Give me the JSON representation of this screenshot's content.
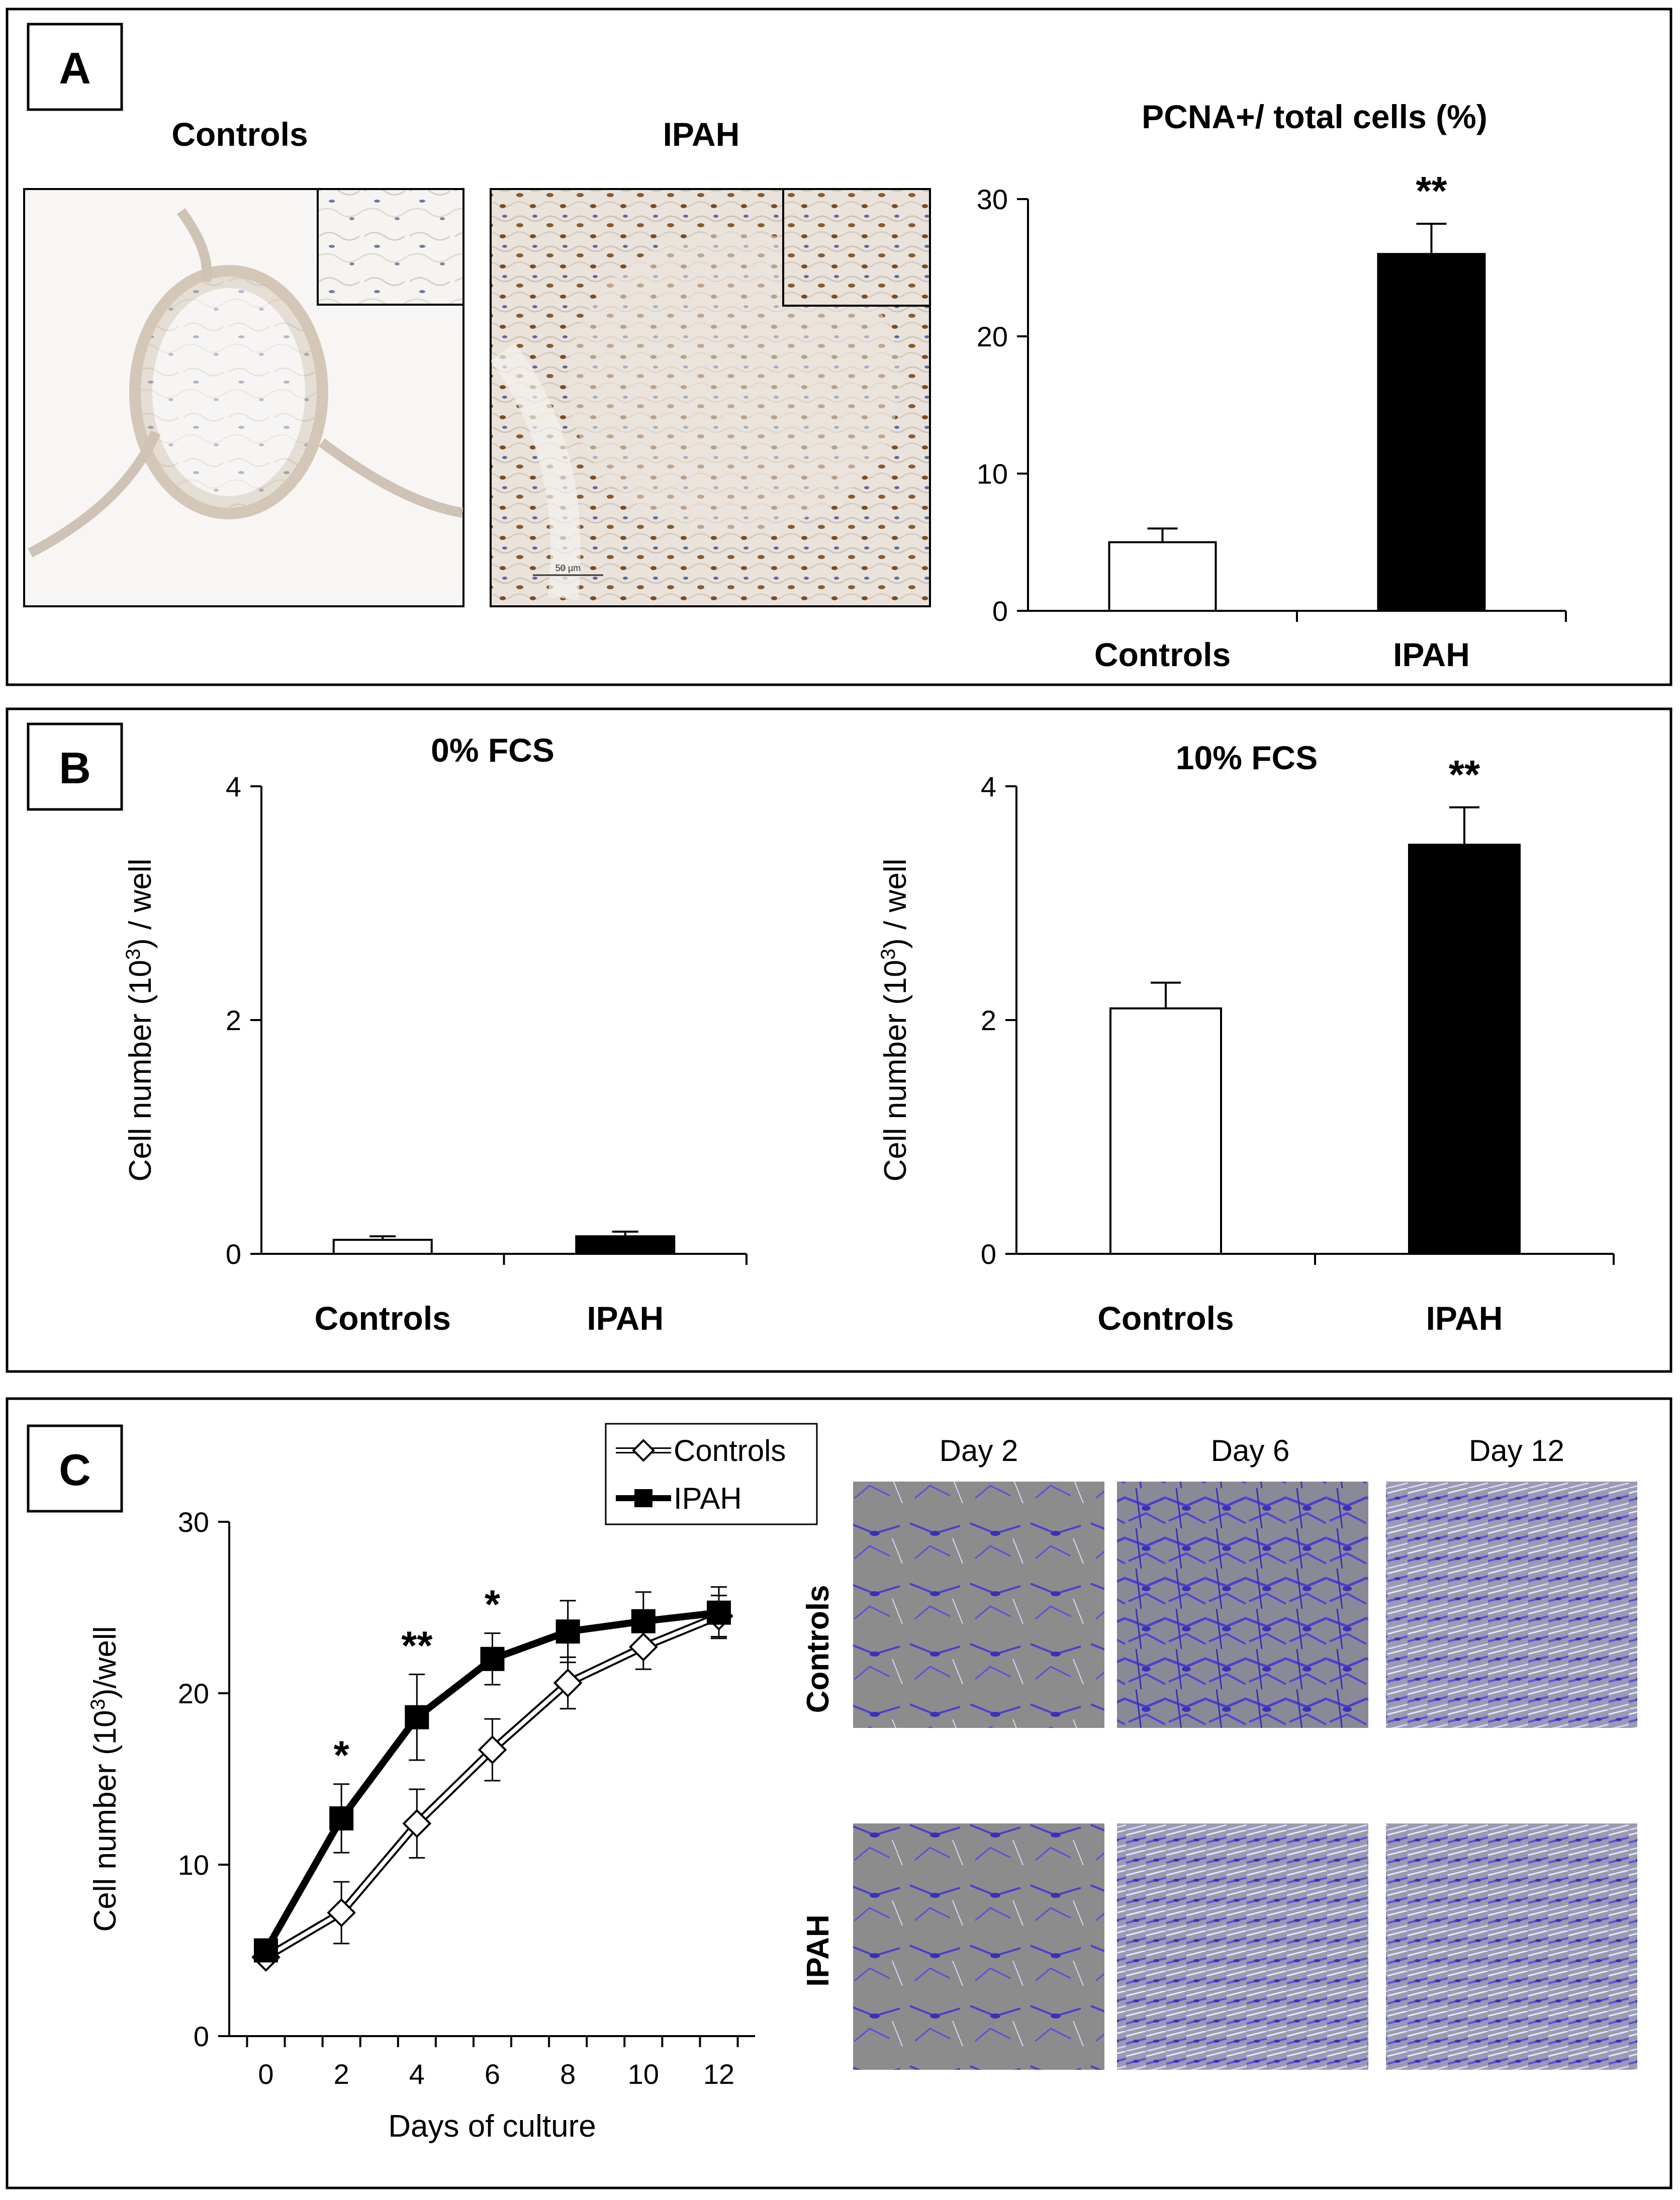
{
  "panels": {
    "a": {
      "letter": "A",
      "controls_heading": "Controls",
      "ipah_heading": "IPAH",
      "micro_scale": "50 µm"
    },
    "b": {
      "letter": "B"
    },
    "c": {
      "letter": "C",
      "day_headers": [
        "Day 2",
        "Day 6",
        "Day 12"
      ],
      "row_labels": [
        "Controls",
        "IPAH"
      ]
    }
  },
  "colors": {
    "axis": "#000000",
    "bar_controls": "#ffffff",
    "bar_ipah": "#000000",
    "stain_brown": "#8a5a2a",
    "stain_blue": "#4a3fd0",
    "culture_bg": "#8a8a8a"
  },
  "chart_data": [
    {
      "id": "pcna",
      "type": "bar",
      "title": "PCNA+/ total cells (%)",
      "categories": [
        "Controls",
        "IPAH"
      ],
      "values": [
        5,
        26
      ],
      "errors": [
        1,
        2.2
      ],
      "significance": [
        "",
        "**"
      ],
      "ylim": [
        0,
        30
      ],
      "yticks": [
        0,
        10,
        20,
        30
      ],
      "ylabel": "",
      "grid": false
    },
    {
      "id": "fcs0",
      "type": "bar",
      "title": "0% FCS",
      "categories": [
        "Controls",
        "IPAH"
      ],
      "values": [
        0.12,
        0.15
      ],
      "errors": [
        0.03,
        0.04
      ],
      "significance": [
        "",
        ""
      ],
      "ylim": [
        0,
        4
      ],
      "yticks": [
        0,
        2,
        4
      ],
      "ylabel": "Cell number (10",
      "ylabel_sup": "3",
      "ylabel_tail": ") / well",
      "grid": false
    },
    {
      "id": "fcs10",
      "type": "bar",
      "title": "10% FCS",
      "categories": [
        "Controls",
        "IPAH"
      ],
      "values": [
        2.1,
        3.5
      ],
      "errors": [
        0.22,
        0.32
      ],
      "significance": [
        "",
        "**"
      ],
      "ylim": [
        0,
        4
      ],
      "yticks": [
        0,
        2,
        4
      ],
      "ylabel": "Cell number (10",
      "ylabel_sup": "3",
      "ylabel_tail": ") / well",
      "grid": false
    },
    {
      "id": "growth",
      "type": "line",
      "x": [
        0,
        2,
        4,
        6,
        8,
        10,
        12
      ],
      "xlim": [
        0,
        12
      ],
      "ylim": [
        0,
        30
      ],
      "yticks": [
        0,
        10,
        20,
        30
      ],
      "xlabel": "Days of culture",
      "ylabel": "Cell number (10",
      "ylabel_sup": "3",
      "ylabel_tail": ")/well",
      "legend_position": "top-right",
      "series": [
        {
          "name": "Controls",
          "marker": "diamond-open",
          "values": [
            4.6,
            7.2,
            12.4,
            16.7,
            20.6,
            22.7,
            24.5
          ],
          "errors": [
            0.3,
            1.8,
            2.0,
            1.8,
            1.5,
            1.3,
            1.2
          ]
        },
        {
          "name": "IPAH",
          "marker": "square-filled",
          "values": [
            5.0,
            12.7,
            18.6,
            22.0,
            23.6,
            24.2,
            24.7
          ],
          "errors": [
            0.4,
            2.0,
            2.5,
            1.5,
            1.8,
            1.7,
            1.5
          ]
        }
      ],
      "significance": [
        "",
        "*",
        "**",
        "*",
        "",
        "",
        ""
      ],
      "grid": false
    }
  ]
}
